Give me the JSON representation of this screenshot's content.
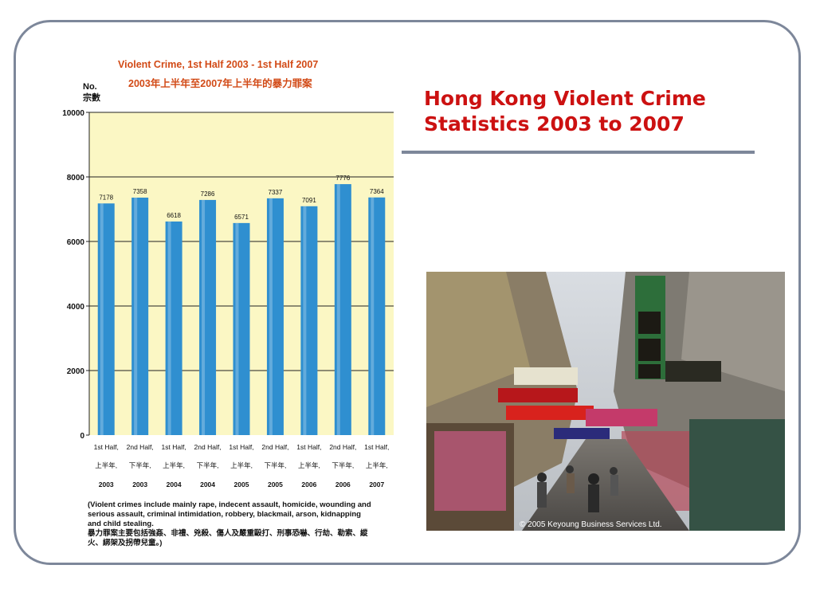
{
  "slide": {
    "title": "Hong Kong Violent Crime\nStatistics 2003 to 2007",
    "photo_credit": "© 2005 Keyoung Business Services Ltd."
  },
  "chart_data": {
    "type": "bar",
    "title": "Violent Crime, 1st Half 2003 - 1st Half 2007",
    "subtitle": "2003年上半年至2007年上半年的暴力罪案",
    "ylabel": "No.",
    "ylabel_zh": "宗數",
    "ylim": [
      0,
      10000
    ],
    "yticks": [
      "0",
      "2000",
      "4000",
      "6000",
      "8000",
      "10000"
    ],
    "grid": true,
    "categories": [
      {
        "period": "1st Half,",
        "period_zh": "上半年,",
        "year": "2003"
      },
      {
        "period": "2nd Half,",
        "period_zh": "下半年,",
        "year": "2003"
      },
      {
        "period": "1st Half,",
        "period_zh": "上半年,",
        "year": "2004"
      },
      {
        "period": "2nd Half,",
        "period_zh": "下半年,",
        "year": "2004"
      },
      {
        "period": "1st Half,",
        "period_zh": "上半年,",
        "year": "2005"
      },
      {
        "period": "2nd Half,",
        "period_zh": "下半年,",
        "year": "2005"
      },
      {
        "period": "1st Half,",
        "period_zh": "上半年,",
        "year": "2006"
      },
      {
        "period": "2nd Half,",
        "period_zh": "下半年,",
        "year": "2006"
      },
      {
        "period": "1st Half,",
        "period_zh": "上半年,",
        "year": "2007"
      }
    ],
    "values": [
      7178,
      7358,
      6618,
      7286,
      6571,
      7337,
      7091,
      7776,
      7364
    ],
    "note": [
      "(Violent crimes include mainly rape, indecent assault, homicide, wounding and",
      "serious assault, criminal intimidation, robbery, blackmail, arson, kidnapping",
      "and child stealing.",
      "暴力罪案主要包括強姦、非禮、兇殺、傷人及嚴重毆打、刑事恐嚇、行劫、勒索、縱",
      "火、綁架及拐帶兒童。)"
    ],
    "colors": {
      "bar": "#2f8fd0",
      "plot_bg": "#fbf7c4",
      "title": "#d24a16"
    }
  }
}
